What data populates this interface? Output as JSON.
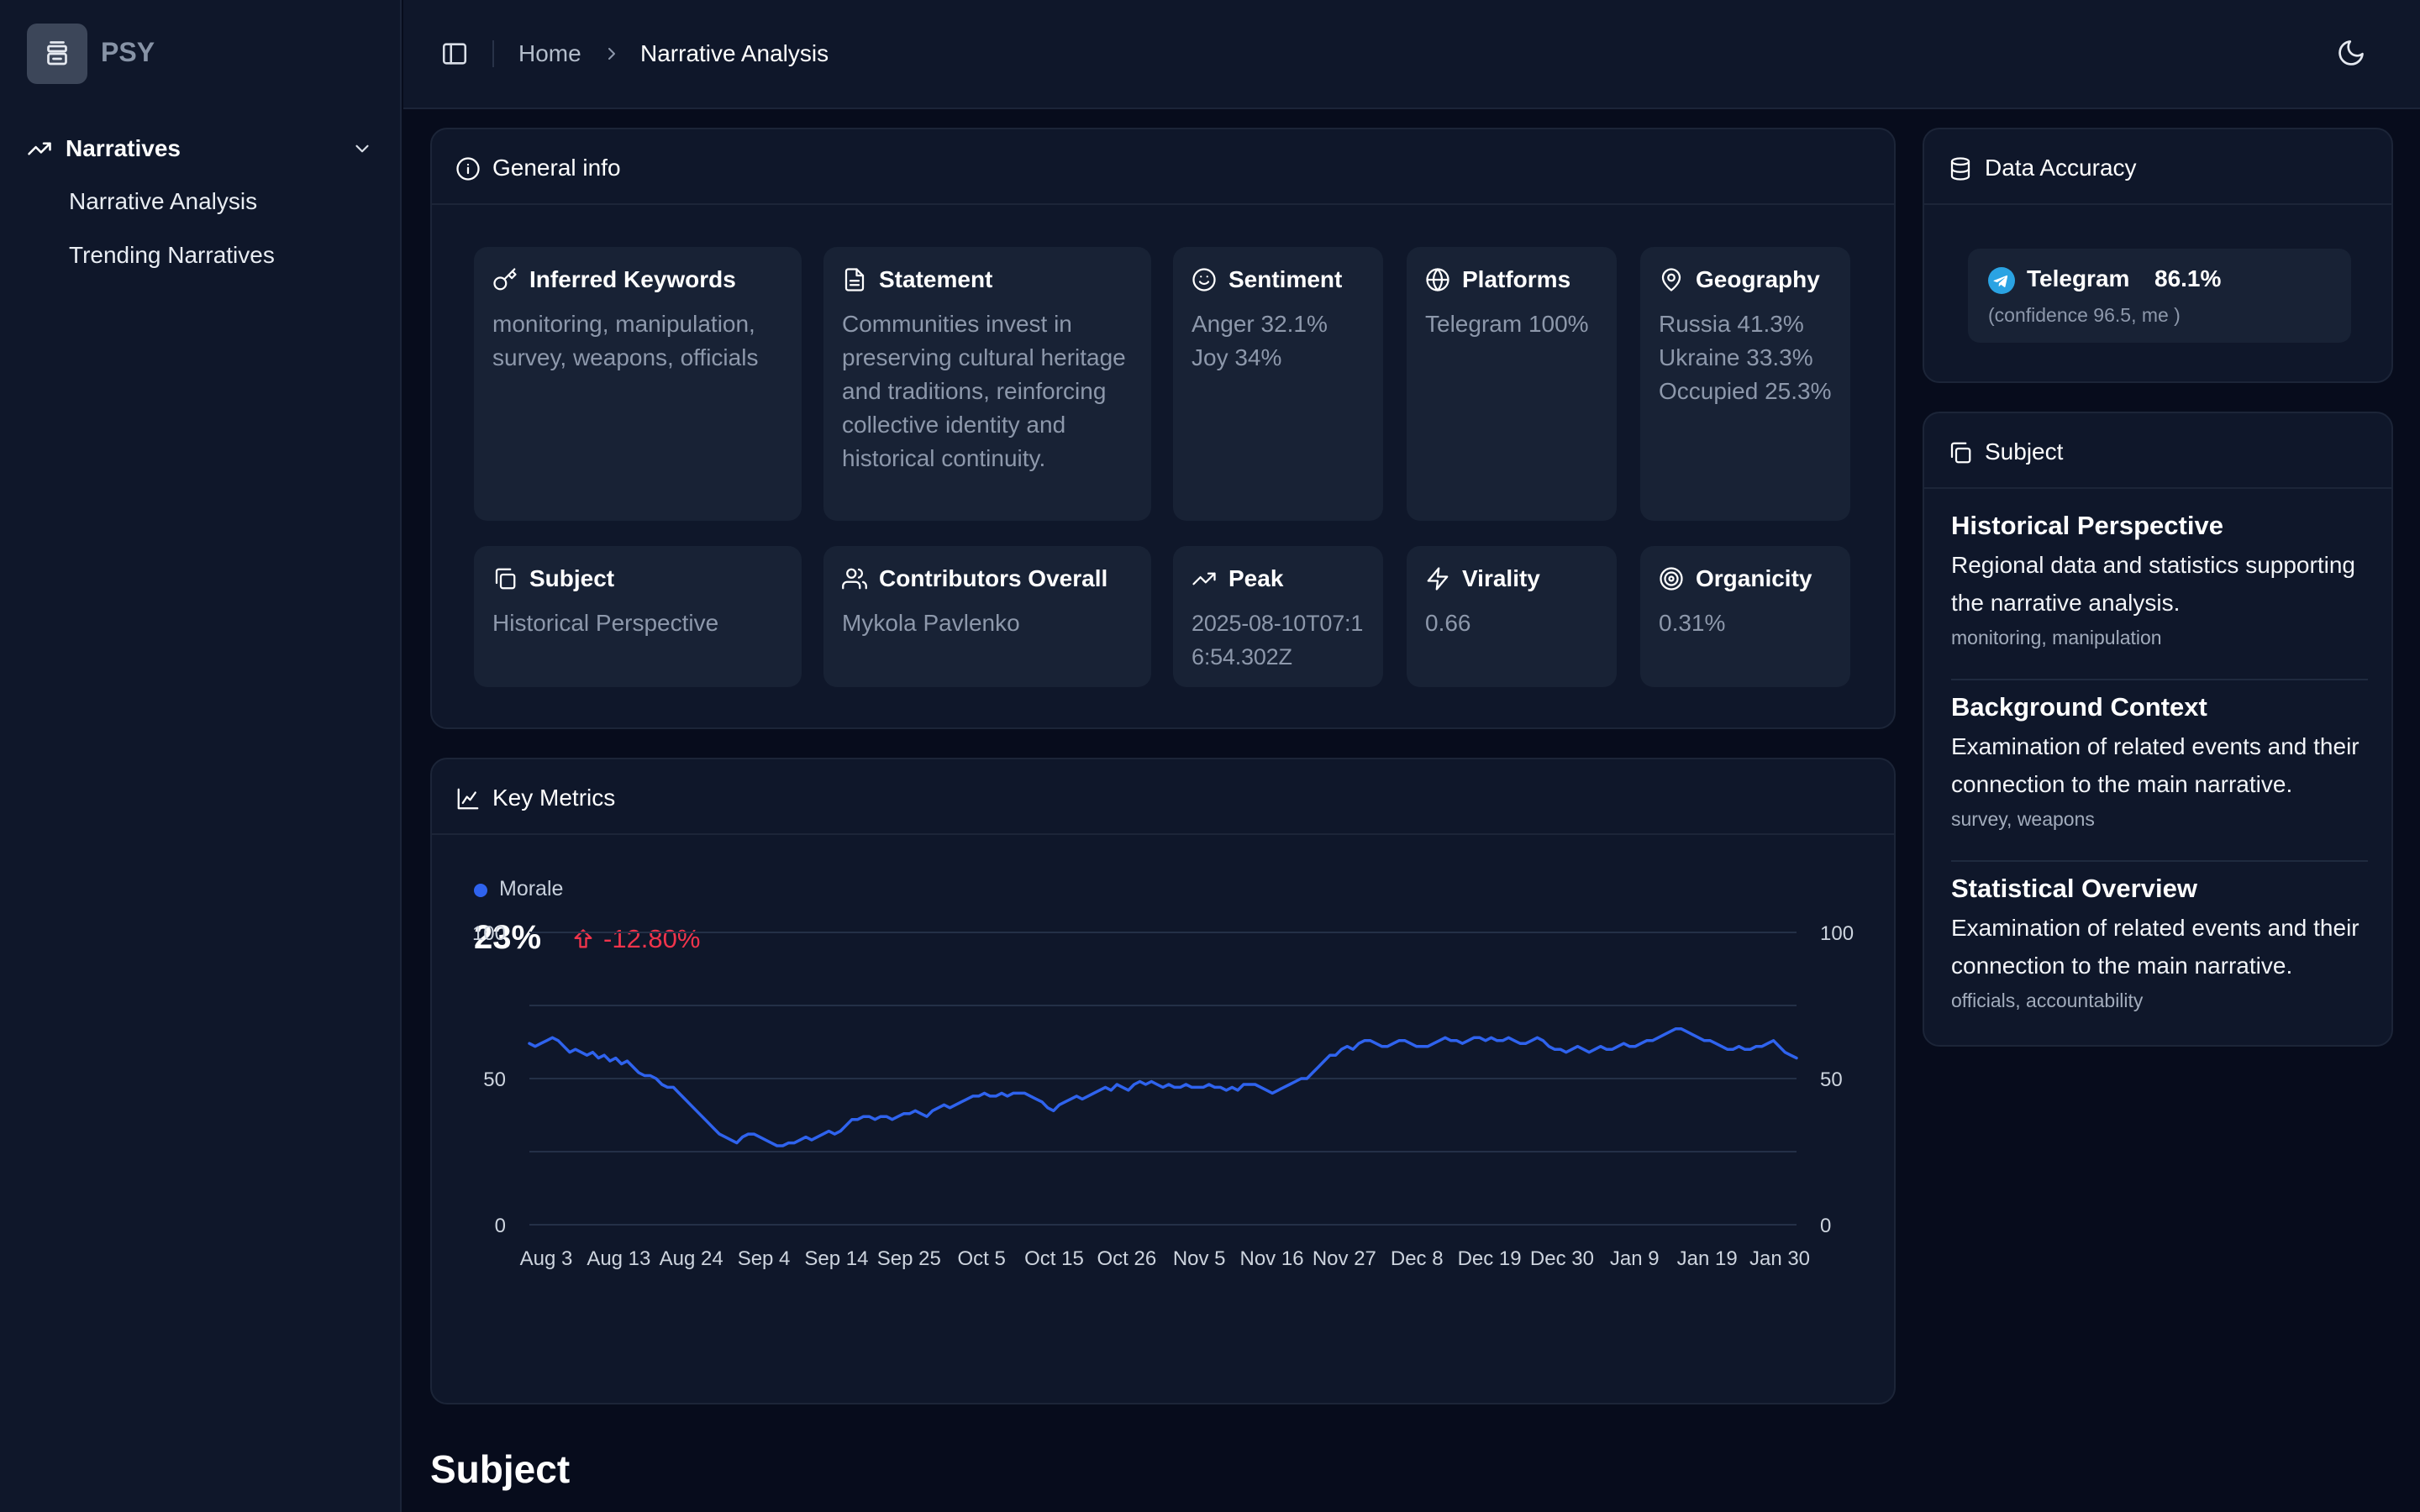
{
  "app": {
    "brand": "PSY"
  },
  "sidebar": {
    "group_label": "Narratives",
    "items": [
      {
        "label": "Narrative Analysis"
      },
      {
        "label": "Trending Narratives"
      }
    ]
  },
  "breadcrumb": {
    "home": "Home",
    "current": "Narrative Analysis"
  },
  "general_info": {
    "title": "General info",
    "tiles": {
      "keywords": {
        "title": "Inferred Keywords",
        "value": "monitoring, manipulation, survey, weapons, officials"
      },
      "statement": {
        "title": "Statement",
        "value": "Communities invest in preserving cultural heritage and traditions, reinforcing collective identity and historical continuity."
      },
      "sentiment": {
        "title": "Sentiment",
        "lines": [
          "Anger 32.1%",
          "Joy 34%"
        ]
      },
      "platforms": {
        "title": "Platforms",
        "value": "Telegram 100%"
      },
      "geography": {
        "title": "Geography",
        "lines": [
          "Russia 41.3%",
          "Ukraine 33.3%",
          "Occupied 25.3%"
        ]
      },
      "subject": {
        "title": "Subject",
        "value": "Historical Perspective"
      },
      "contributors": {
        "title": "Contributors Overall",
        "value": "Mykola Pavlenko"
      },
      "peak": {
        "title": "Peak",
        "value": "2025-08-10T07:16:54.302Z"
      },
      "virality": {
        "title": "Virality",
        "value": "0.66"
      },
      "organicity": {
        "title": "Organicity",
        "value": "0.31%"
      }
    }
  },
  "key_metrics": {
    "title": "Key Metrics",
    "legend": "Morale",
    "value": "23%",
    "delta": "-12.80%"
  },
  "chart_data": {
    "type": "line",
    "series": [
      {
        "name": "Morale",
        "color": "#2f63ee",
        "values": [
          62,
          61,
          62,
          63,
          64,
          63,
          61,
          59,
          60,
          59,
          58,
          59,
          57,
          58,
          56,
          57,
          55,
          56,
          54,
          52,
          51,
          51,
          50,
          48,
          47,
          47,
          45,
          43,
          41,
          39,
          37,
          35,
          33,
          31,
          30,
          29,
          28,
          30,
          31,
          31,
          30,
          29,
          28,
          27,
          27,
          28,
          28,
          29,
          30,
          29,
          30,
          31,
          32,
          31,
          32,
          34,
          36,
          36,
          37,
          37,
          36,
          37,
          37,
          36,
          37,
          38,
          38,
          39,
          38,
          37,
          39,
          40,
          41,
          40,
          41,
          42,
          43,
          44,
          44,
          45,
          44,
          44,
          45,
          44,
          45,
          45,
          45,
          44,
          43,
          42,
          40,
          39,
          41,
          42,
          43,
          44,
          43,
          44,
          45,
          46,
          47,
          46,
          48,
          47,
          46,
          48,
          49,
          48,
          49,
          48,
          47,
          48,
          47,
          47,
          48,
          47,
          47,
          47,
          48,
          47,
          47,
          46,
          47,
          46,
          48,
          48,
          48,
          47,
          46,
          45,
          46,
          47,
          48,
          49,
          50,
          50,
          52,
          54,
          56,
          58,
          58,
          60,
          61,
          60,
          62,
          63,
          63,
          62,
          61,
          61,
          62,
          63,
          63,
          62,
          61,
          61,
          61,
          62,
          63,
          64,
          63,
          63,
          62,
          63,
          64,
          64,
          63,
          64,
          63,
          63,
          64,
          63,
          62,
          62,
          63,
          64,
          63,
          61,
          60,
          60,
          59,
          60,
          61,
          60,
          59,
          60,
          61,
          60,
          60,
          61,
          62,
          61,
          61,
          62,
          63,
          63,
          64,
          65,
          66,
          67,
          67,
          66,
          65,
          64,
          63,
          63,
          62,
          61,
          60,
          60,
          61,
          60,
          60,
          61,
          61,
          62,
          63,
          61,
          59,
          58,
          57
        ]
      }
    ],
    "x_ticks": [
      "Aug 3",
      "Aug 13",
      "Aug 24",
      "Sep 4",
      "Sep 14",
      "Sep 25",
      "Oct 5",
      "Oct 15",
      "Oct 26",
      "Nov 5",
      "Nov 16",
      "Nov 27",
      "Dec 8",
      "Dec 19",
      "Dec 30",
      "Jan 9",
      "Jan 19",
      "Jan 30"
    ],
    "y_ticks": [
      0,
      50,
      100
    ],
    "ylim": [
      0,
      100
    ],
    "grid": true,
    "gridlines": [
      0,
      25,
      50,
      75,
      100
    ]
  },
  "data_accuracy": {
    "title": "Data Accuracy",
    "platform": "Telegram",
    "percent": "86.1%",
    "note": "(confidence 96.5, me )"
  },
  "subject_panel": {
    "title": "Subject",
    "items": [
      {
        "title": "Historical Perspective",
        "desc": "Regional data and statistics supporting the narrative analysis.",
        "tags": "monitoring, manipulation"
      },
      {
        "title": "Background Context",
        "desc": "Examination of related events and their connection to the main narrative.",
        "tags": "survey, weapons"
      },
      {
        "title": "Statistical Overview",
        "desc": "Examination of related events and their connection to the main narrative.",
        "tags": "officials, accountability"
      }
    ]
  },
  "section_heading": "Subject",
  "colors": {
    "accent": "#2f63ee",
    "negative": "#f0344b",
    "background": "#070c1c",
    "card": "#0f172a",
    "tile": "#182235"
  }
}
